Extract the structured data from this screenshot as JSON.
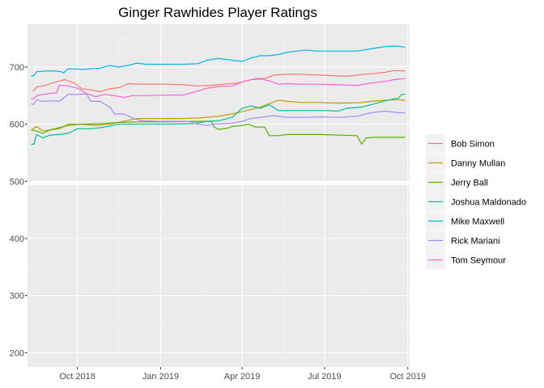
{
  "chart_data": {
    "type": "line",
    "title": "Ginger Rawhides Player Ratings",
    "xlabel": "",
    "ylabel": "",
    "x_range": [
      "2018-08-07",
      "2019-10-03"
    ],
    "ylim": [
      175,
      775
    ],
    "y_ticks": [
      200,
      300,
      400,
      500,
      600,
      700
    ],
    "x_ticks": [
      {
        "date": "2018-10-01",
        "label": "Oct 2018"
      },
      {
        "date": "2019-01-01",
        "label": "Jan 2019"
      },
      {
        "date": "2019-04-01",
        "label": "Apr 2019"
      },
      {
        "date": "2019-07-01",
        "label": "Jul 2019"
      },
      {
        "date": "2019-10-01",
        "label": "Oct 2019"
      }
    ],
    "grid": true,
    "panel_break_between": [
      505,
      515
    ],
    "legend_position": "right",
    "series": [
      {
        "name": "Bob Simon",
        "color": "#F8766D",
        "points": [
          [
            "2018-08-13",
            657
          ],
          [
            "2018-08-17",
            665
          ],
          [
            "2018-08-27",
            668
          ],
          [
            "2018-09-03",
            672
          ],
          [
            "2018-09-10",
            675
          ],
          [
            "2018-09-17",
            678
          ],
          [
            "2018-09-28",
            672
          ],
          [
            "2018-10-06",
            662
          ],
          [
            "2018-10-16",
            660
          ],
          [
            "2018-10-26",
            657
          ],
          [
            "2018-11-06",
            662
          ],
          [
            "2018-11-16",
            664
          ],
          [
            "2018-11-26",
            671
          ],
          [
            "2018-12-10",
            670
          ],
          [
            "2018-12-26",
            670
          ],
          [
            "2019-01-10",
            670
          ],
          [
            "2019-01-26",
            669
          ],
          [
            "2019-02-11",
            667
          ],
          [
            "2019-02-26",
            668
          ],
          [
            "2019-03-11",
            670
          ],
          [
            "2019-03-26",
            672
          ],
          [
            "2019-04-06",
            676
          ],
          [
            "2019-04-16",
            680
          ],
          [
            "2019-04-26",
            680
          ],
          [
            "2019-05-06",
            686
          ],
          [
            "2019-05-16",
            687
          ],
          [
            "2019-05-26",
            688
          ],
          [
            "2019-06-10",
            687
          ],
          [
            "2019-06-26",
            686
          ],
          [
            "2019-07-11",
            685
          ],
          [
            "2019-07-26",
            684
          ],
          [
            "2019-08-11",
            687
          ],
          [
            "2019-08-26",
            689
          ],
          [
            "2019-09-06",
            691
          ],
          [
            "2019-09-16",
            694
          ],
          [
            "2019-09-28",
            693
          ]
        ]
      },
      {
        "name": "Danny Mullan",
        "color": "#C49A00",
        "points": [
          [
            "2018-08-11",
            590
          ],
          [
            "2018-08-17",
            596
          ],
          [
            "2018-08-24",
            588
          ],
          [
            "2018-09-01",
            590
          ],
          [
            "2018-09-11",
            592
          ],
          [
            "2018-09-21",
            600
          ],
          [
            "2018-10-06",
            600
          ],
          [
            "2018-10-21",
            598
          ],
          [
            "2018-11-06",
            600
          ],
          [
            "2018-11-21",
            605
          ],
          [
            "2018-12-06",
            610
          ],
          [
            "2018-12-26",
            610
          ],
          [
            "2019-01-11",
            610
          ],
          [
            "2019-01-26",
            610
          ],
          [
            "2019-02-11",
            611
          ],
          [
            "2019-02-21",
            612
          ],
          [
            "2019-03-06",
            614
          ],
          [
            "2019-03-21",
            618
          ],
          [
            "2019-04-06",
            624
          ],
          [
            "2019-04-21",
            630
          ],
          [
            "2019-05-01",
            636
          ],
          [
            "2019-05-11",
            642
          ],
          [
            "2019-05-21",
            640
          ],
          [
            "2019-06-06",
            638
          ],
          [
            "2019-06-26",
            638
          ],
          [
            "2019-07-11",
            637
          ],
          [
            "2019-07-26",
            637
          ],
          [
            "2019-08-11",
            638
          ],
          [
            "2019-08-21",
            640
          ],
          [
            "2019-09-06",
            642
          ],
          [
            "2019-09-21",
            643
          ],
          [
            "2019-09-28",
            642
          ]
        ]
      },
      {
        "name": "Jerry Ball",
        "color": "#53B400",
        "points": [
          [
            "2018-08-11",
            590
          ],
          [
            "2018-08-17",
            588
          ],
          [
            "2018-08-24",
            584
          ],
          [
            "2018-09-01",
            590
          ],
          [
            "2018-09-11",
            594
          ],
          [
            "2018-09-21",
            598
          ],
          [
            "2018-10-06",
            600
          ],
          [
            "2018-10-26",
            601
          ],
          [
            "2018-11-16",
            603
          ],
          [
            "2018-12-06",
            604
          ],
          [
            "2019-01-06",
            604
          ],
          [
            "2019-02-06",
            605
          ],
          [
            "2019-02-26",
            605
          ],
          [
            "2019-03-01",
            595
          ],
          [
            "2019-03-06",
            591
          ],
          [
            "2019-03-16",
            593
          ],
          [
            "2019-03-21",
            596
          ],
          [
            "2019-04-01",
            598
          ],
          [
            "2019-04-08",
            600
          ],
          [
            "2019-04-16",
            595
          ],
          [
            "2019-04-26",
            595
          ],
          [
            "2019-05-01",
            580
          ],
          [
            "2019-05-11",
            580
          ],
          [
            "2019-05-21",
            582
          ],
          [
            "2019-06-06",
            582
          ],
          [
            "2019-06-26",
            582
          ],
          [
            "2019-07-16",
            581
          ],
          [
            "2019-08-06",
            580
          ],
          [
            "2019-08-11",
            565
          ],
          [
            "2019-08-16",
            576
          ],
          [
            "2019-08-26",
            577
          ],
          [
            "2019-09-11",
            577
          ],
          [
            "2019-09-28",
            577
          ]
        ]
      },
      {
        "name": "Joshua Maldonado",
        "color": "#00C094",
        "points": [
          [
            "2018-08-11",
            565
          ],
          [
            "2018-08-14",
            565
          ],
          [
            "2018-08-17",
            582
          ],
          [
            "2018-08-24",
            576
          ],
          [
            "2018-09-01",
            581
          ],
          [
            "2018-09-11",
            582
          ],
          [
            "2018-09-21",
            584
          ],
          [
            "2018-10-01",
            592
          ],
          [
            "2018-10-16",
            592
          ],
          [
            "2018-10-31",
            595
          ],
          [
            "2018-11-16",
            600
          ],
          [
            "2018-12-06",
            600
          ],
          [
            "2019-01-06",
            600
          ],
          [
            "2019-02-06",
            601
          ],
          [
            "2019-02-21",
            605
          ],
          [
            "2019-03-06",
            606
          ],
          [
            "2019-03-21",
            612
          ],
          [
            "2019-04-01",
            628
          ],
          [
            "2019-04-11",
            632
          ],
          [
            "2019-04-21",
            628
          ],
          [
            "2019-05-01",
            634
          ],
          [
            "2019-05-11",
            624
          ],
          [
            "2019-05-26",
            624
          ],
          [
            "2019-06-11",
            624
          ],
          [
            "2019-07-01",
            624
          ],
          [
            "2019-07-16",
            623
          ],
          [
            "2019-07-26",
            628
          ],
          [
            "2019-08-11",
            630
          ],
          [
            "2019-08-26",
            636
          ],
          [
            "2019-09-06",
            641
          ],
          [
            "2019-09-21",
            646
          ],
          [
            "2019-09-24",
            652
          ],
          [
            "2019-09-28",
            652
          ]
        ]
      },
      {
        "name": "Mike Maxwell",
        "color": "#00B6EB",
        "points": [
          [
            "2018-08-11",
            685
          ],
          [
            "2018-08-14",
            685
          ],
          [
            "2018-08-17",
            692
          ],
          [
            "2018-08-27",
            693
          ],
          [
            "2018-09-06",
            693
          ],
          [
            "2018-09-13",
            692
          ],
          [
            "2018-09-16",
            690
          ],
          [
            "2018-09-21",
            697
          ],
          [
            "2018-10-06",
            696
          ],
          [
            "2018-10-16",
            697
          ],
          [
            "2018-10-26",
            698
          ],
          [
            "2018-11-06",
            703
          ],
          [
            "2018-11-16",
            700
          ],
          [
            "2018-11-26",
            703
          ],
          [
            "2018-12-06",
            707
          ],
          [
            "2018-12-16",
            705
          ],
          [
            "2019-01-06",
            705
          ],
          [
            "2019-01-26",
            705
          ],
          [
            "2019-02-11",
            706
          ],
          [
            "2019-02-21",
            712
          ],
          [
            "2019-03-06",
            715
          ],
          [
            "2019-03-21",
            712
          ],
          [
            "2019-04-01",
            710
          ],
          [
            "2019-04-11",
            716
          ],
          [
            "2019-04-21",
            720
          ],
          [
            "2019-05-01",
            720
          ],
          [
            "2019-05-11",
            722
          ],
          [
            "2019-05-21",
            726
          ],
          [
            "2019-06-01",
            728
          ],
          [
            "2019-06-11",
            730
          ],
          [
            "2019-06-21",
            728
          ],
          [
            "2019-07-06",
            728
          ],
          [
            "2019-07-21",
            728
          ],
          [
            "2019-08-06",
            728
          ],
          [
            "2019-08-21",
            732
          ],
          [
            "2019-09-06",
            736
          ],
          [
            "2019-09-16",
            737
          ],
          [
            "2019-09-28",
            735
          ]
        ]
      },
      {
        "name": "Rick Mariani",
        "color": "#A58AFF",
        "points": [
          [
            "2018-08-11",
            635
          ],
          [
            "2018-08-14",
            635
          ],
          [
            "2018-08-17",
            643
          ],
          [
            "2018-08-24",
            640
          ],
          [
            "2018-09-01",
            641
          ],
          [
            "2018-09-11",
            640
          ],
          [
            "2018-09-21",
            652
          ],
          [
            "2018-10-01",
            652
          ],
          [
            "2018-10-11",
            653
          ],
          [
            "2018-10-16",
            640
          ],
          [
            "2018-10-26",
            640
          ],
          [
            "2018-11-06",
            630
          ],
          [
            "2018-11-11",
            618
          ],
          [
            "2018-11-21",
            618
          ],
          [
            "2018-12-01",
            611
          ],
          [
            "2018-12-11",
            606
          ],
          [
            "2019-01-01",
            605
          ],
          [
            "2019-01-21",
            605
          ],
          [
            "2019-02-01",
            605
          ],
          [
            "2019-02-11",
            600
          ],
          [
            "2019-02-21",
            598
          ],
          [
            "2019-03-01",
            600
          ],
          [
            "2019-03-11",
            601
          ],
          [
            "2019-03-21",
            602
          ],
          [
            "2019-04-01",
            605
          ],
          [
            "2019-04-11",
            610
          ],
          [
            "2019-04-21",
            612
          ],
          [
            "2019-05-06",
            615
          ],
          [
            "2019-05-21",
            612
          ],
          [
            "2019-06-06",
            612
          ],
          [
            "2019-06-26",
            613
          ],
          [
            "2019-07-16",
            612
          ],
          [
            "2019-08-06",
            614
          ],
          [
            "2019-08-21",
            620
          ],
          [
            "2019-09-06",
            623
          ],
          [
            "2019-09-21",
            620
          ],
          [
            "2019-09-28",
            620
          ]
        ]
      },
      {
        "name": "Tom Seymour",
        "color": "#FB61D7",
        "points": [
          [
            "2018-08-11",
            645
          ],
          [
            "2018-08-14",
            645
          ],
          [
            "2018-08-17",
            650
          ],
          [
            "2018-08-24",
            652
          ],
          [
            "2018-09-01",
            654
          ],
          [
            "2018-09-08",
            655
          ],
          [
            "2018-09-11",
            668
          ],
          [
            "2018-09-21",
            667
          ],
          [
            "2018-10-01",
            663
          ],
          [
            "2018-10-11",
            654
          ],
          [
            "2018-10-21",
            648
          ],
          [
            "2018-10-31",
            652
          ],
          [
            "2018-11-11",
            650
          ],
          [
            "2018-11-21",
            647
          ],
          [
            "2018-12-01",
            650
          ],
          [
            "2018-12-16",
            650
          ],
          [
            "2019-01-06",
            651
          ],
          [
            "2019-01-26",
            651
          ],
          [
            "2019-02-11",
            658
          ],
          [
            "2019-02-21",
            663
          ],
          [
            "2019-03-06",
            666
          ],
          [
            "2019-03-21",
            667
          ],
          [
            "2019-04-01",
            674
          ],
          [
            "2019-04-11",
            678
          ],
          [
            "2019-04-21",
            679
          ],
          [
            "2019-05-01",
            676
          ],
          [
            "2019-05-11",
            670
          ],
          [
            "2019-05-21",
            671
          ],
          [
            "2019-06-06",
            670
          ],
          [
            "2019-06-26",
            670
          ],
          [
            "2019-07-16",
            669
          ],
          [
            "2019-08-06",
            668
          ],
          [
            "2019-08-21",
            672
          ],
          [
            "2019-09-06",
            675
          ],
          [
            "2019-09-16",
            678
          ],
          [
            "2019-09-28",
            680
          ]
        ]
      }
    ]
  }
}
